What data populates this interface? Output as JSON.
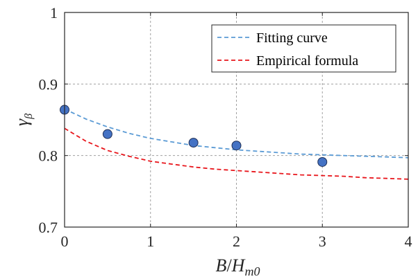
{
  "chart_data": {
    "type": "scatter",
    "title": "",
    "xlabel_parts": {
      "base": "B",
      "slash": "/",
      "var": "H",
      "sub": "m0"
    },
    "ylabel_parts": {
      "base": "γ",
      "sub": "β"
    },
    "xlim": [
      0,
      4
    ],
    "ylim": [
      0.7,
      1.0
    ],
    "xticks": [
      0,
      1,
      2,
      3,
      4
    ],
    "xtick_labels": [
      "0",
      "1",
      "2",
      "3",
      "4"
    ],
    "yticks": [
      0.7,
      0.8,
      0.9,
      1.0
    ],
    "ytick_labels": [
      "0.7",
      "0.8",
      "0.9",
      "1"
    ],
    "grid": true,
    "legend_position": "top-right",
    "points": {
      "x": [
        0,
        0.5,
        1.5,
        2.0,
        3.0
      ],
      "y": [
        0.864,
        0.83,
        0.818,
        0.814,
        0.791
      ],
      "color": "#4472c4"
    },
    "series": [
      {
        "name": "Fitting curve",
        "color": "#5b9bd5",
        "x": [
          0,
          0.25,
          0.5,
          0.75,
          1.0,
          1.25,
          1.5,
          1.75,
          2.0,
          2.25,
          2.5,
          2.75,
          3.0,
          3.25,
          3.5,
          3.75,
          4.0
        ],
        "y": [
          0.865,
          0.851,
          0.84,
          0.831,
          0.824,
          0.819,
          0.814,
          0.811,
          0.808,
          0.806,
          0.804,
          0.802,
          0.801,
          0.8,
          0.799,
          0.798,
          0.797
        ]
      },
      {
        "name": "Empirical formula",
        "color": "#e8151b",
        "x": [
          0,
          0.25,
          0.5,
          0.75,
          1.0,
          1.25,
          1.5,
          1.75,
          2.0,
          2.25,
          2.5,
          2.75,
          3.0,
          3.25,
          3.5,
          3.75,
          4.0
        ],
        "y": [
          0.838,
          0.82,
          0.807,
          0.799,
          0.792,
          0.788,
          0.784,
          0.781,
          0.779,
          0.777,
          0.775,
          0.773,
          0.772,
          0.771,
          0.769,
          0.768,
          0.767
        ]
      }
    ]
  }
}
